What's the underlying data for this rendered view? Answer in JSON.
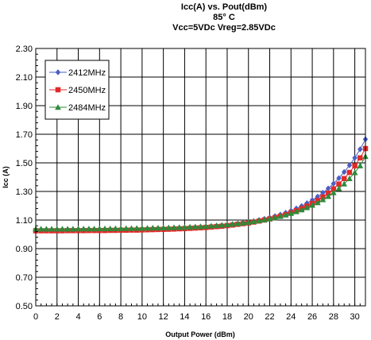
{
  "chart_data": {
    "type": "line",
    "title": [
      "Icc(A) vs. Pout(dBm)",
      "85° C",
      "Vcc=5VDc Vreg=2.85VDc"
    ],
    "xlabel": "Output Power (dBm)",
    "ylabel": "Icc (A)",
    "xlim": [
      0,
      31
    ],
    "ylim": [
      0.5,
      2.3
    ],
    "xticks": [
      "0",
      "2",
      "4",
      "6",
      "8",
      "10",
      "12",
      "14",
      "16",
      "18",
      "20",
      "22",
      "24",
      "26",
      "28",
      "30"
    ],
    "yticks": [
      "0.50",
      "0.70",
      "0.90",
      "1.10",
      "1.30",
      "1.50",
      "1.70",
      "1.90",
      "2.10",
      "2.30"
    ],
    "grid": true,
    "legend_position": "top-left",
    "x": [
      0,
      0.5,
      1,
      1.5,
      2,
      2.5,
      3,
      3.5,
      4,
      4.5,
      5,
      5.5,
      6,
      6.5,
      7,
      7.5,
      8,
      8.5,
      9,
      9.5,
      10,
      10.5,
      11,
      11.5,
      12,
      12.5,
      13,
      13.5,
      14,
      14.5,
      15,
      15.5,
      16,
      16.5,
      17,
      17.5,
      18,
      18.5,
      19,
      19.5,
      20,
      20.5,
      21,
      21.5,
      22,
      22.5,
      23,
      23.5,
      24,
      24.5,
      25,
      25.5,
      26,
      26.5,
      27,
      27.5,
      28,
      28.5,
      29,
      29.5,
      30,
      30.5,
      31
    ],
    "series": [
      {
        "name": "2412MHz",
        "color": "#4a5fc4",
        "marker": "diamond",
        "values": [
          1.03,
          1.03,
          1.03,
          1.03,
          1.03,
          1.03,
          1.031,
          1.031,
          1.031,
          1.031,
          1.032,
          1.032,
          1.032,
          1.032,
          1.033,
          1.033,
          1.034,
          1.034,
          1.035,
          1.035,
          1.036,
          1.037,
          1.038,
          1.039,
          1.04,
          1.041,
          1.042,
          1.044,
          1.045,
          1.047,
          1.049,
          1.051,
          1.053,
          1.056,
          1.059,
          1.062,
          1.066,
          1.07,
          1.075,
          1.08,
          1.086,
          1.092,
          1.1,
          1.108,
          1.117,
          1.127,
          1.138,
          1.151,
          1.165,
          1.181,
          1.198,
          1.218,
          1.24,
          1.264,
          1.291,
          1.321,
          1.355,
          1.393,
          1.436,
          1.483,
          1.535,
          1.595,
          1.665
        ]
      },
      {
        "name": "2450MHz",
        "color": "#e02a2a",
        "marker": "square",
        "values": [
          1.025,
          1.025,
          1.025,
          1.025,
          1.025,
          1.025,
          1.026,
          1.026,
          1.026,
          1.026,
          1.027,
          1.027,
          1.027,
          1.027,
          1.028,
          1.028,
          1.029,
          1.029,
          1.03,
          1.03,
          1.031,
          1.032,
          1.033,
          1.034,
          1.035,
          1.036,
          1.037,
          1.039,
          1.04,
          1.042,
          1.044,
          1.046,
          1.048,
          1.051,
          1.054,
          1.057,
          1.061,
          1.065,
          1.07,
          1.075,
          1.08,
          1.086,
          1.093,
          1.1,
          1.108,
          1.117,
          1.127,
          1.138,
          1.151,
          1.165,
          1.18,
          1.197,
          1.216,
          1.237,
          1.261,
          1.288,
          1.318,
          1.352,
          1.39,
          1.433,
          1.48,
          1.535,
          1.6
        ]
      },
      {
        "name": "2484MHz",
        "color": "#2e8b3a",
        "marker": "triangle",
        "values": [
          1.038,
          1.038,
          1.038,
          1.038,
          1.038,
          1.038,
          1.038,
          1.038,
          1.039,
          1.039,
          1.039,
          1.039,
          1.04,
          1.04,
          1.04,
          1.041,
          1.041,
          1.042,
          1.042,
          1.043,
          1.043,
          1.044,
          1.045,
          1.045,
          1.046,
          1.047,
          1.048,
          1.049,
          1.05,
          1.052,
          1.053,
          1.055,
          1.057,
          1.059,
          1.062,
          1.065,
          1.068,
          1.072,
          1.076,
          1.08,
          1.085,
          1.09,
          1.096,
          1.102,
          1.109,
          1.117,
          1.126,
          1.136,
          1.147,
          1.159,
          1.172,
          1.187,
          1.204,
          1.222,
          1.243,
          1.266,
          1.292,
          1.321,
          1.353,
          1.39,
          1.432,
          1.48,
          1.545
        ]
      }
    ]
  }
}
